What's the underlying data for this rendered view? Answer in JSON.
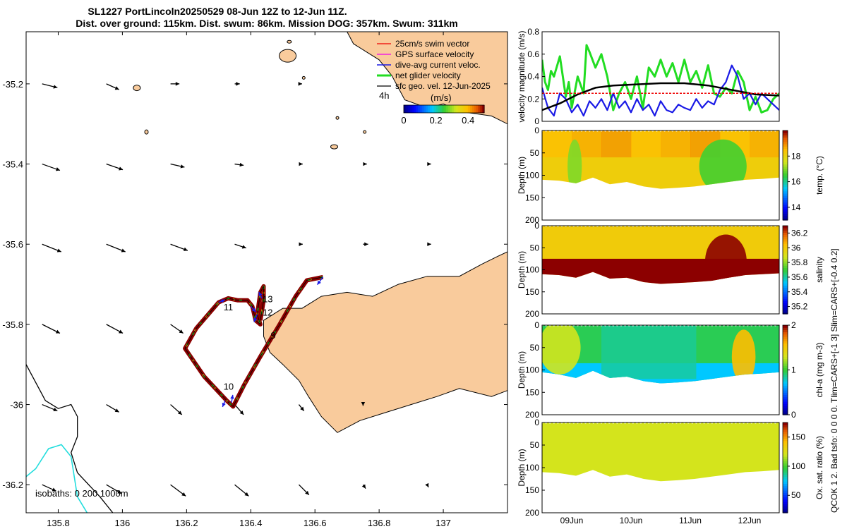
{
  "title": {
    "line1": "SL1227 PortLincoln20250529 08-Jun 12Z to 12-Jun 11Z.",
    "line2": "Dist. over ground: 115km. Dist. swum: 86km. Mission DOG: 357km. Swum: 311km"
  },
  "colors": {
    "land": "#f9cb9c",
    "track_outer": "#8b0000",
    "track_inner": "#f5c518",
    "green": "#22dd22",
    "blue": "#1a1ae6",
    "cyan": "#22dddd",
    "red": "#ee0000",
    "magenta": "#ee00ee"
  },
  "map": {
    "xlim": [
      135.7,
      137.2
    ],
    "ylim": [
      -36.27,
      -35.07
    ],
    "xticks": [
      "135.8",
      "136",
      "136.2",
      "136.4",
      "136.6",
      "136.8",
      "137"
    ],
    "xtick_vals": [
      135.8,
      136.0,
      136.2,
      136.4,
      136.6,
      136.8,
      137.0
    ],
    "yticks": [
      "-35.2",
      "-35.4",
      "-35.6",
      "-35.8",
      "-36",
      "-36.2"
    ],
    "ytick_vals": [
      -35.2,
      -35.4,
      -35.6,
      -35.8,
      -36.0,
      -36.2
    ],
    "legend": [
      {
        "label": "25cm/s swim vector",
        "color": "#ee0000"
      },
      {
        "label": "GPS surface velocity",
        "color": "#ee00ee"
      },
      {
        "label": "dive-avg current veloc.",
        "color": "#1a1ae6"
      },
      {
        "label": "net glider velocity",
        "color": "#22dd22"
      },
      {
        "label": "sfc geo. vel. 12-Jun-2025",
        "color": "#000000"
      }
    ],
    "time_marker": "4h",
    "colorbar": {
      "unit": "(m/s)",
      "ticks": [
        "0",
        "0.2",
        "0.4"
      ],
      "range": [
        0,
        0.5
      ]
    },
    "isobaths_label": "isobaths: 0    200  1000m",
    "day_labels": [
      {
        "text": "9",
        "lon": 136.462,
        "lat": -35.835
      },
      {
        "text": "10",
        "lon": 136.315,
        "lat": -35.963
      },
      {
        "text": "11",
        "lon": 136.315,
        "lat": -35.765
      },
      {
        "text": "12",
        "lon": 136.437,
        "lat": -35.778
      },
      {
        "text": "13",
        "lon": 136.437,
        "lat": -35.745
      }
    ],
    "track": [
      [
        136.625,
        -35.682
      ],
      [
        136.575,
        -35.69
      ],
      [
        136.54,
        -35.73
      ],
      [
        136.49,
        -35.8
      ],
      [
        136.43,
        -35.88
      ],
      [
        136.38,
        -35.95
      ],
      [
        136.345,
        -36.005
      ],
      [
        136.325,
        -35.99
      ],
      [
        136.255,
        -35.93
      ],
      [
        136.195,
        -35.86
      ],
      [
        136.23,
        -35.81
      ],
      [
        136.3,
        -35.745
      ],
      [
        136.33,
        -35.735
      ],
      [
        136.36,
        -35.74
      ],
      [
        136.39,
        -35.74
      ],
      [
        136.405,
        -35.755
      ],
      [
        136.415,
        -35.79
      ],
      [
        136.43,
        -35.8
      ],
      [
        136.42,
        -35.775
      ],
      [
        136.43,
        -35.72
      ],
      [
        136.44,
        -35.705
      ],
      [
        136.44,
        -35.74
      ],
      [
        136.43,
        -35.79
      ]
    ],
    "current_vectors": [
      {
        "lon": 136.625,
        "lat": -35.682,
        "u": -0.09,
        "v": -0.12
      },
      {
        "lon": 136.42,
        "lat": -35.775,
        "u": -0.05,
        "v": -0.12
      },
      {
        "lon": 136.435,
        "lat": -35.735,
        "u": -0.05,
        "v": 0.1
      },
      {
        "lon": 136.4,
        "lat": -35.755,
        "u": 0.08,
        "v": -0.09
      },
      {
        "lon": 136.34,
        "lat": -35.995,
        "u": 0.02,
        "v": 0.12
      },
      {
        "lon": 136.32,
        "lat": -35.99,
        "u": -0.04,
        "v": -0.1
      },
      {
        "lon": 136.3,
        "lat": -35.745,
        "u": 0.1,
        "v": 0.04
      }
    ],
    "geo_vectors": [
      {
        "lon": 135.75,
        "lat": -35.2,
        "u": 0.24,
        "v": -0.06
      },
      {
        "lon": 135.95,
        "lat": -35.2,
        "u": 0.2,
        "v": -0.09
      },
      {
        "lon": 136.15,
        "lat": -35.2,
        "u": 0.14,
        "v": 0.0
      },
      {
        "lon": 136.35,
        "lat": -35.2,
        "u": 0.08,
        "v": 0.0
      },
      {
        "lon": 136.55,
        "lat": -35.2,
        "u": 0.05,
        "v": 0.0
      },
      {
        "lon": 135.75,
        "lat": -35.4,
        "u": 0.28,
        "v": -0.1
      },
      {
        "lon": 135.95,
        "lat": -35.4,
        "u": 0.26,
        "v": -0.09
      },
      {
        "lon": 136.15,
        "lat": -35.4,
        "u": 0.22,
        "v": -0.05
      },
      {
        "lon": 136.35,
        "lat": -35.4,
        "u": 0.14,
        "v": -0.02
      },
      {
        "lon": 136.55,
        "lat": -35.4,
        "u": 0.06,
        "v": 0.0
      },
      {
        "lon": 136.75,
        "lat": -35.4,
        "u": 0.06,
        "v": 0.0
      },
      {
        "lon": 136.95,
        "lat": -35.4,
        "u": 0.06,
        "v": 0.0
      },
      {
        "lon": 135.75,
        "lat": -35.6,
        "u": 0.3,
        "v": -0.12
      },
      {
        "lon": 135.95,
        "lat": -35.6,
        "u": 0.3,
        "v": -0.12
      },
      {
        "lon": 136.15,
        "lat": -35.6,
        "u": 0.27,
        "v": -0.1
      },
      {
        "lon": 136.35,
        "lat": -35.6,
        "u": 0.18,
        "v": -0.06
      },
      {
        "lon": 136.55,
        "lat": -35.6,
        "u": 0.06,
        "v": 0.0
      },
      {
        "lon": 136.75,
        "lat": -35.6,
        "u": 0.08,
        "v": 0.0
      },
      {
        "lon": 136.95,
        "lat": -35.6,
        "u": 0.06,
        "v": 0.0
      },
      {
        "lon": 135.75,
        "lat": -35.8,
        "u": 0.28,
        "v": -0.14
      },
      {
        "lon": 135.95,
        "lat": -35.8,
        "u": 0.26,
        "v": -0.14
      },
      {
        "lon": 136.15,
        "lat": -35.8,
        "u": 0.2,
        "v": -0.14
      },
      {
        "lon": 135.75,
        "lat": -36.0,
        "u": 0.24,
        "v": -0.1
      },
      {
        "lon": 135.95,
        "lat": -36.0,
        "u": 0.2,
        "v": -0.12
      },
      {
        "lon": 136.15,
        "lat": -36.0,
        "u": 0.18,
        "v": -0.16
      },
      {
        "lon": 136.35,
        "lat": -36.0,
        "u": 0.14,
        "v": -0.16
      },
      {
        "lon": 136.55,
        "lat": -36.0,
        "u": 0.08,
        "v": -0.1
      },
      {
        "lon": 135.75,
        "lat": -36.2,
        "u": 0.22,
        "v": -0.1
      },
      {
        "lon": 135.95,
        "lat": -36.2,
        "u": 0.24,
        "v": -0.14
      },
      {
        "lon": 136.15,
        "lat": -36.2,
        "u": 0.24,
        "v": -0.18
      },
      {
        "lon": 136.35,
        "lat": -36.2,
        "u": 0.22,
        "v": -0.18
      },
      {
        "lon": 136.55,
        "lat": -36.2,
        "u": 0.16,
        "v": -0.16
      },
      {
        "lon": 136.75,
        "lat": -36.2,
        "u": 0.04,
        "v": -0.06
      },
      {
        "lon": 136.95,
        "lat": -36.2,
        "u": 0.02,
        "v": -0.04
      },
      {
        "lon": 136.75,
        "lat": -36.0,
        "u": 0.0,
        "v": -0.02
      }
    ]
  },
  "chart_data": [
    {
      "type": "line",
      "ylabel": "velocity magnitude (m/s)",
      "ylim": [
        0,
        0.8
      ],
      "yticks": [
        "0",
        "0.2",
        "0.4",
        "0.6",
        "0.8"
      ],
      "ytick_vals": [
        0,
        0.2,
        0.4,
        0.6,
        0.8
      ],
      "xlim": [
        0,
        4
      ],
      "series": [
        {
          "name": "net glider velocity",
          "color": "#22dd22",
          "x": [
            0,
            0.05,
            0.1,
            0.15,
            0.2,
            0.3,
            0.4,
            0.45,
            0.5,
            0.6,
            0.7,
            0.75,
            0.8,
            0.9,
            1.0,
            1.1,
            1.2,
            1.3,
            1.4,
            1.5,
            1.6,
            1.7,
            1.8,
            1.9,
            2.0,
            2.1,
            2.2,
            2.3,
            2.4,
            2.5,
            2.6,
            2.7,
            2.8,
            2.9,
            3.0,
            3.1,
            3.2,
            3.3,
            3.4,
            3.5,
            3.6,
            3.7,
            3.8,
            3.9,
            4.0
          ],
          "values": [
            0.55,
            0.35,
            0.28,
            0.45,
            0.4,
            0.58,
            0.22,
            0.35,
            0.12,
            0.4,
            0.25,
            0.68,
            0.62,
            0.48,
            0.6,
            0.4,
            0.1,
            0.25,
            0.35,
            0.2,
            0.4,
            0.12,
            0.48,
            0.4,
            0.55,
            0.4,
            0.52,
            0.35,
            0.55,
            0.35,
            0.45,
            0.3,
            0.5,
            0.25,
            0.22,
            0.3,
            0.25,
            0.45,
            0.35,
            0.1,
            0.22,
            0.08,
            0.1,
            0.2,
            0.25
          ]
        },
        {
          "name": "dive-avg current veloc.",
          "color": "#1a1ae6",
          "x": [
            0,
            0.1,
            0.2,
            0.3,
            0.4,
            0.5,
            0.6,
            0.7,
            0.8,
            0.9,
            1.0,
            1.1,
            1.2,
            1.3,
            1.4,
            1.5,
            1.6,
            1.7,
            1.8,
            1.9,
            2.0,
            2.1,
            2.2,
            2.3,
            2.4,
            2.5,
            2.6,
            2.7,
            2.8,
            2.9,
            3.0,
            3.1,
            3.2,
            3.3,
            3.4,
            3.5,
            3.6,
            3.7,
            3.8,
            3.9,
            4.0
          ],
          "values": [
            0.3,
            0.12,
            0.05,
            0.25,
            0.2,
            0.08,
            0.15,
            0.05,
            0.18,
            0.12,
            0.2,
            0.1,
            0.25,
            0.12,
            0.18,
            0.08,
            0.2,
            0.1,
            0.15,
            0.05,
            0.18,
            0.1,
            0.08,
            0.15,
            0.12,
            0.1,
            0.2,
            0.12,
            0.18,
            0.15,
            0.28,
            0.35,
            0.5,
            0.4,
            0.2,
            0.25,
            0.15,
            0.25,
            0.2,
            0.15,
            0.1
          ]
        },
        {
          "name": "swim",
          "color": "#000000",
          "x": [
            0,
            0.3,
            0.6,
            0.9,
            1.2,
            1.6,
            2.0,
            2.4,
            2.8,
            3.2,
            3.6,
            4.0
          ],
          "values": [
            0.1,
            0.16,
            0.24,
            0.3,
            0.32,
            0.33,
            0.34,
            0.34,
            0.32,
            0.28,
            0.24,
            0.23
          ]
        },
        {
          "name": "25cm/s",
          "color": "#ee0000",
          "x": [
            0,
            4
          ],
          "values": [
            0.25,
            0.25
          ]
        }
      ]
    },
    {
      "type": "heatmap",
      "ylabel": "Depth (m)",
      "cbar_label": "temp. (°C)",
      "cbar_ticks": [
        "14",
        "16",
        "18"
      ],
      "cbar_tick_vals": [
        14,
        16,
        18
      ],
      "clim": [
        13,
        20
      ],
      "yticks": [
        "0",
        "50",
        "100",
        "150",
        "200"
      ],
      "bottom_depth": [
        110,
        112,
        118,
        105,
        120,
        115,
        125,
        130,
        128,
        125,
        120,
        115,
        110,
        108,
        105
      ],
      "fill_value": 18.2,
      "features": [
        {
          "x": 0.55,
          "d": 80,
          "value": 17.0,
          "r": 0.12
        },
        {
          "x": 3.05,
          "d": 80,
          "value": 16.6,
          "r": 0.4
        }
      ]
    },
    {
      "type": "heatmap",
      "ylabel": "Depth (m)",
      "cbar_label": "salinity",
      "cbar_ticks": [
        "35.2",
        "35.4",
        "35.6",
        "35.8",
        "36",
        "36.2"
      ],
      "cbar_tick_vals": [
        35.2,
        35.4,
        35.6,
        35.8,
        36.0,
        36.2
      ],
      "clim": [
        35.1,
        36.3
      ],
      "yticks": [
        "0",
        "50",
        "100",
        "150",
        "200"
      ],
      "bottom_depth": [
        110,
        112,
        118,
        105,
        120,
        118,
        128,
        132,
        130,
        128,
        125,
        118,
        112,
        110,
        108
      ],
      "fill_value": 36.0,
      "features": [
        {
          "x": 3.1,
          "d": 80,
          "value": 36.3,
          "r": 0.35
        }
      ]
    },
    {
      "type": "heatmap",
      "ylabel": "Depth (m)",
      "cbar_label": "chl-a  (mg m-3)",
      "cbar_ticks": [
        "0",
        "1",
        "2"
      ],
      "cbar_tick_vals": [
        0,
        1,
        2
      ],
      "clim": [
        0,
        2
      ],
      "yticks": [
        "0",
        "50",
        "100",
        "150",
        "200"
      ],
      "bottom_depth": [
        105,
        110,
        118,
        102,
        118,
        115,
        125,
        130,
        128,
        125,
        120,
        115,
        110,
        108,
        105
      ],
      "fill_value": 0.95,
      "features": [
        {
          "x": 0.3,
          "d": 50,
          "value": 1.3,
          "r": 0.35
        },
        {
          "x": 3.4,
          "d": 70,
          "value": 1.6,
          "r": 0.2
        }
      ]
    },
    {
      "type": "heatmap",
      "ylabel": "Depth (m)",
      "cbar_label": "Ox. sat. ratio (%)",
      "cbar_ticks": [
        "50",
        "100",
        "150"
      ],
      "cbar_tick_vals": [
        50,
        100,
        150
      ],
      "clim": [
        20,
        175
      ],
      "yticks": [
        "0",
        "50",
        "100",
        "150",
        "200"
      ],
      "bottom_depth": [
        110,
        112,
        118,
        105,
        120,
        115,
        125,
        130,
        128,
        125,
        120,
        115,
        110,
        108,
        105
      ],
      "fill_value": 122,
      "features": []
    }
  ],
  "time_axis": {
    "ticks": [
      "09Jun",
      "10Jun",
      "11Jun",
      "12Jun"
    ],
    "tick_vals": [
      0.5,
      1.5,
      2.5,
      3.5
    ],
    "xlim": [
      0,
      4
    ]
  },
  "side_note": "QCOK 1  2. Bad tsfo: 0  0  0  0.  Tlim=CARS+[-1 3]  Slim=CARS+[-0.4 0.2]"
}
